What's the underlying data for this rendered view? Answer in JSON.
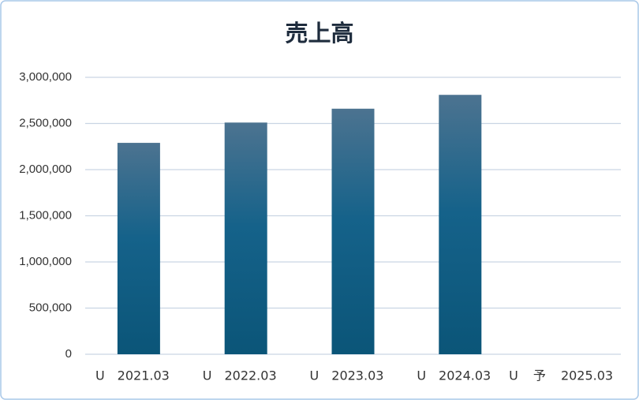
{
  "chart_data": {
    "type": "bar",
    "title": "売上高",
    "categories": [
      "U　2021.03",
      "U　2022.03",
      "U　2023.03",
      "U　2024.03",
      "U 予 2025.03"
    ],
    "values": [
      2290000,
      2510000,
      2660000,
      2810000,
      null
    ],
    "color": "#0b5578",
    "ylim": [
      0,
      3000000
    ],
    "yticks": [
      0,
      {
        "value": 500000,
        "label": "500,000"
      },
      {
        "value": 1000000,
        "label": "1,000,000"
      },
      {
        "value": 1500000,
        "label": "1,500,000"
      },
      {
        "value": 2000000,
        "label": "2,000,000"
      },
      {
        "value": 2500000,
        "label": "2,500,000"
      },
      {
        "value": 3000000,
        "label": "3,000,000"
      }
    ],
    "grid": true
  }
}
